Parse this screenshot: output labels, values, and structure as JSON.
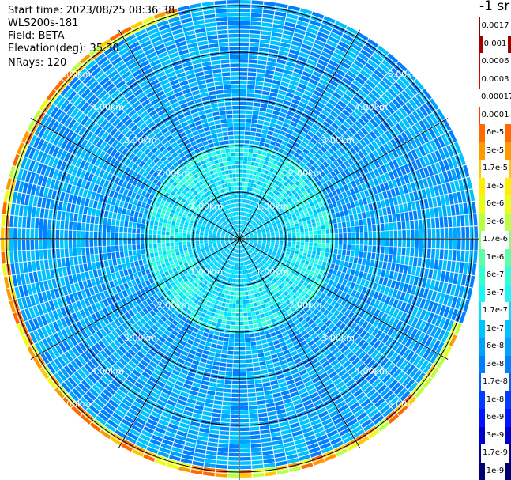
{
  "header": {
    "start_time": "Start time: 2023/08/25 08:36:38",
    "device": "WLS200s-181",
    "field": "Field: BETA",
    "elevation": "Elevation(deg): 35.30",
    "nrays": "NRays: 120"
  },
  "unit_label": "-1 sr",
  "chart_data": {
    "type": "heatmap",
    "projection": "polar-ppi",
    "nrays": 120,
    "range_rings": [
      "1.00km",
      "2.00km",
      "3.00km",
      "4.00km",
      "5.00km"
    ],
    "grid": true,
    "colorbar": [
      {
        "label": "0.0017",
        "color": "#8b0000"
      },
      {
        "label": "0.001",
        "color": "#a10000"
      },
      {
        "label": "0.0006",
        "color": "#c40000"
      },
      {
        "label": "0.0003",
        "color": "#e50000"
      },
      {
        "label": "0.00017",
        "color": "#ffffff"
      },
      {
        "label": "0.0001",
        "color": "#ff3a00"
      },
      {
        "label": "6e-5",
        "color": "#ff6a00"
      },
      {
        "label": "3e-5",
        "color": "#ff9900"
      },
      {
        "label": "1.7e-5",
        "color": "#ffc800"
      },
      {
        "label": "1e-5",
        "color": "#ffee00"
      },
      {
        "label": "6e-6",
        "color": "#e8ff1a"
      },
      {
        "label": "3e-6",
        "color": "#b8ff45"
      },
      {
        "label": "1.7e-6",
        "color": "#88ff77"
      },
      {
        "label": "1e-6",
        "color": "#5cffa6"
      },
      {
        "label": "6e-7",
        "color": "#35ffd2"
      },
      {
        "label": "3e-7",
        "color": "#1ff5f5"
      },
      {
        "label": "1.7e-7",
        "color": "#00e0ff"
      },
      {
        "label": "1e-7",
        "color": "#00c2ff"
      },
      {
        "label": "6e-8",
        "color": "#00a2ff"
      },
      {
        "label": "3e-8",
        "color": "#0080ff"
      },
      {
        "label": "1.7e-8",
        "color": "#0060ff"
      },
      {
        "label": "1e-8",
        "color": "#003cff"
      },
      {
        "label": "6e-9",
        "color": "#0015ff"
      },
      {
        "label": "3e-9",
        "color": "#0000cc"
      },
      {
        "label": "1.7e-9",
        "color": "#000099"
      },
      {
        "label": "1e-9",
        "color": "#000070"
      }
    ]
  }
}
